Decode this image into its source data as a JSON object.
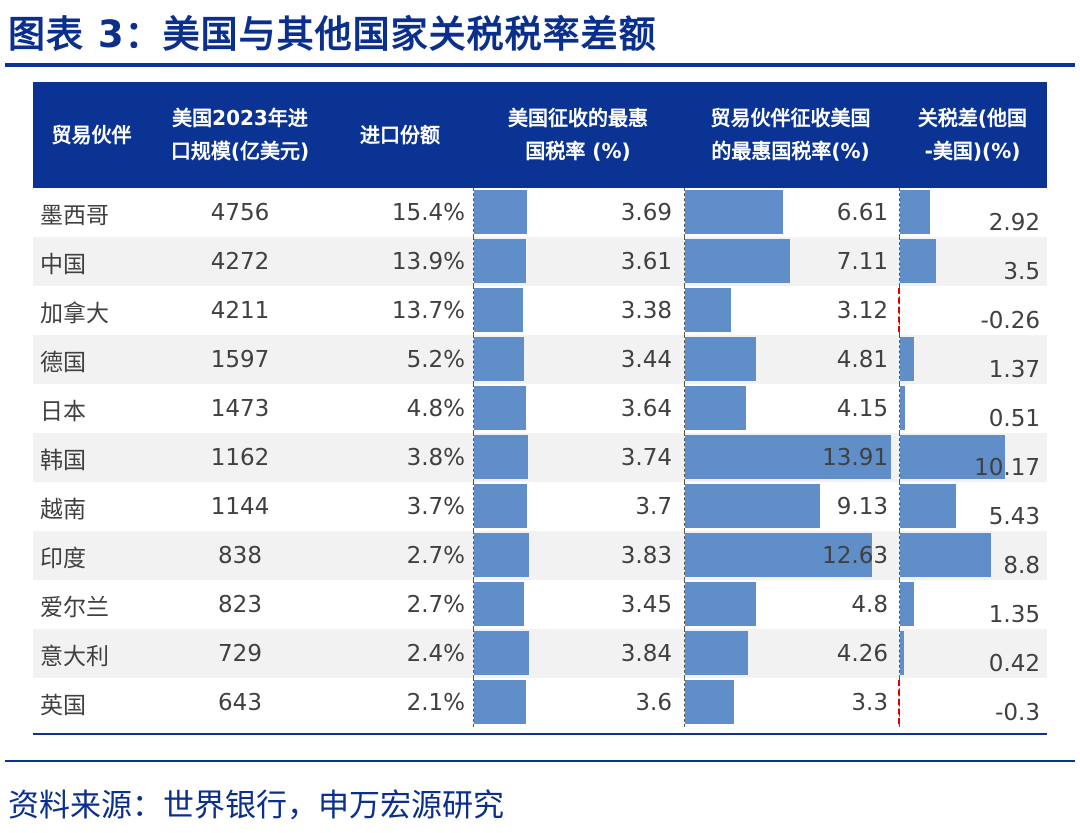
{
  "title": "图表 3：美国与其他国家关税税率差额",
  "source": "资料来源：世界银行，申万宏源研究",
  "colors": {
    "header_bg": "#0a3394",
    "bar": "#5f8ec9",
    "negative": "#e00000",
    "alt_row": "#f2f2f2"
  },
  "chart_data": {
    "type": "table",
    "title": "美国与其他国家关税税率差额",
    "columns": [
      "贸易伙伴",
      "美国2023年进\n口规模(亿美元)",
      "进口份额",
      "美国征收的最惠\n国税率 (%)",
      "贸易伙伴征收美国\n的最惠国税率(%)",
      "关税差(他国\n-美国)(%)"
    ],
    "rows": [
      {
        "partner": "墨西哥",
        "imports": "4756",
        "share": "15.4%",
        "us_rate": 3.69,
        "partner_rate": 6.61,
        "diff": 2.92
      },
      {
        "partner": "中国",
        "imports": "4272",
        "share": "13.9%",
        "us_rate": 3.61,
        "partner_rate": 7.11,
        "diff": 3.5
      },
      {
        "partner": "加拿大",
        "imports": "4211",
        "share": "13.7%",
        "us_rate": 3.38,
        "partner_rate": 3.12,
        "diff": -0.26
      },
      {
        "partner": "德国",
        "imports": "1597",
        "share": "5.2%",
        "us_rate": 3.44,
        "partner_rate": 4.81,
        "diff": 1.37
      },
      {
        "partner": "日本",
        "imports": "1473",
        "share": "4.8%",
        "us_rate": 3.64,
        "partner_rate": 4.15,
        "diff": 0.51
      },
      {
        "partner": "韩国",
        "imports": "1162",
        "share": "3.8%",
        "us_rate": 3.74,
        "partner_rate": 13.91,
        "diff": 10.17
      },
      {
        "partner": "越南",
        "imports": "1144",
        "share": "3.7%",
        "us_rate": 3.7,
        "partner_rate": 9.13,
        "diff": 5.43
      },
      {
        "partner": "印度",
        "imports": "838",
        "share": "2.7%",
        "us_rate": 3.83,
        "partner_rate": 12.63,
        "diff": 8.8
      },
      {
        "partner": "爱尔兰",
        "imports": "823",
        "share": "2.7%",
        "us_rate": 3.45,
        "partner_rate": 4.8,
        "diff": 1.35
      },
      {
        "partner": "意大利",
        "imports": "729",
        "share": "2.4%",
        "us_rate": 3.84,
        "partner_rate": 4.26,
        "diff": 0.42
      },
      {
        "partner": "英国",
        "imports": "643",
        "share": "2.1%",
        "us_rate": 3.6,
        "partner_rate": 3.3,
        "diff": -0.3
      }
    ]
  }
}
